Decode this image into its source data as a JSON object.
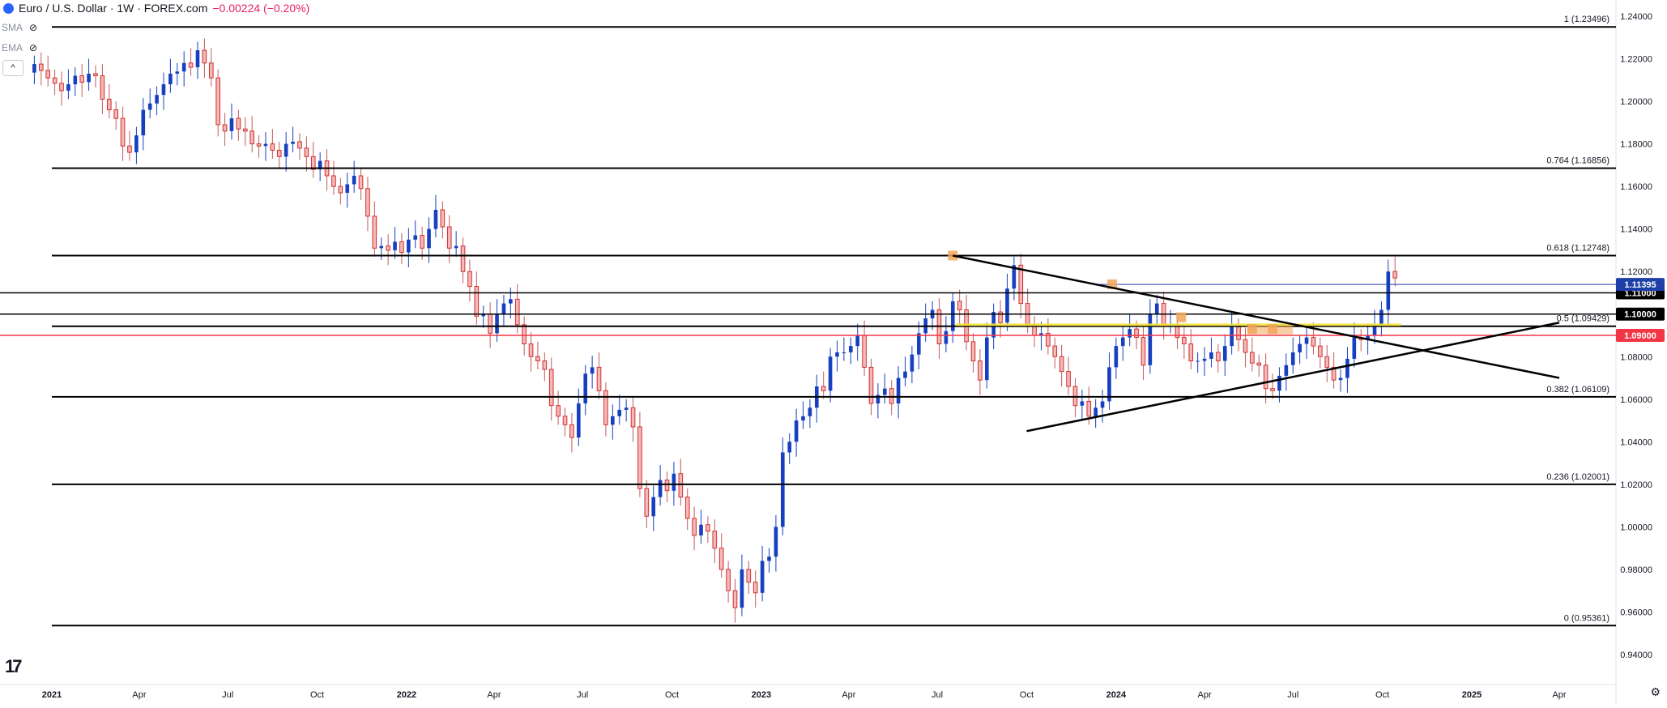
{
  "header": {
    "symbol": "Euro / U.S. Dollar · 1W · FOREX.com",
    "change": "−0.00224 (−0.20%)"
  },
  "indicators": [
    {
      "label": "SMA",
      "icon": "eye-hidden-icon"
    },
    {
      "label": "EMA",
      "icon": "eye-hidden-icon"
    }
  ],
  "collapse_glyph": "^",
  "tv_logo": "17",
  "settings_icon": "⚙",
  "chart_data": {
    "type": "candlestick",
    "y_axis": {
      "range": [
        0.94,
        1.245
      ],
      "ticks": [
        "0.94000",
        "0.96000",
        "0.98000",
        "1.00000",
        "1.02000",
        "1.04000",
        "1.06000",
        "1.08000",
        "1.10000",
        "1.12000",
        "1.14000",
        "1.16000",
        "1.18000",
        "1.20000",
        "1.22000",
        "1.24000"
      ]
    },
    "x_axis": {
      "labels": [
        {
          "text": "2021",
          "date": "2021-01-01",
          "bold": true
        },
        {
          "text": "Apr",
          "date": "2021-04-01"
        },
        {
          "text": "Jul",
          "date": "2021-07-01"
        },
        {
          "text": "Oct",
          "date": "2021-10-01"
        },
        {
          "text": "2022",
          "date": "2022-01-01",
          "bold": true
        },
        {
          "text": "Apr",
          "date": "2022-04-01"
        },
        {
          "text": "Jul",
          "date": "2022-07-01"
        },
        {
          "text": "Oct",
          "date": "2022-10-01"
        },
        {
          "text": "2023",
          "date": "2023-01-01",
          "bold": true
        },
        {
          "text": "Apr",
          "date": "2023-04-01"
        },
        {
          "text": "Jul",
          "date": "2023-07-01"
        },
        {
          "text": "Oct",
          "date": "2023-10-01"
        },
        {
          "text": "2024",
          "date": "2024-01-01",
          "bold": true
        },
        {
          "text": "Apr",
          "date": "2024-04-01"
        },
        {
          "text": "Jul",
          "date": "2024-07-01"
        },
        {
          "text": "Oct",
          "date": "2024-10-01"
        },
        {
          "text": "2025",
          "date": "2025-01-01",
          "bold": true
        },
        {
          "text": "Apr",
          "date": "2025-04-01"
        }
      ]
    },
    "colors": {
      "up": "#1640c0",
      "down": "#d32f2f",
      "hline": "#000000",
      "level_red": "#f23645",
      "level_blue": "#1e3fa8",
      "yellow": "#f3e23b",
      "orange": "#f2a55a"
    },
    "series_close": [
      1.2175,
      1.2145,
      1.211,
      1.2085,
      1.205,
      1.208,
      1.212,
      1.209,
      1.213,
      1.212,
      1.201,
      1.196,
      1.192,
      1.179,
      1.176,
      1.184,
      1.196,
      1.199,
      1.203,
      1.208,
      1.213,
      1.214,
      1.218,
      1.216,
      1.224,
      1.218,
      1.211,
      1.189,
      1.186,
      1.192,
      1.187,
      1.186,
      1.18,
      1.179,
      1.18,
      1.177,
      1.174,
      1.18,
      1.181,
      1.178,
      1.174,
      1.168,
      1.172,
      1.165,
      1.16,
      1.157,
      1.161,
      1.165,
      1.159,
      1.146,
      1.131,
      1.132,
      1.13,
      1.134,
      1.129,
      1.135,
      1.137,
      1.131,
      1.14,
      1.149,
      1.141,
      1.131,
      1.132,
      1.12,
      1.113,
      1.099,
      1.1,
      1.091,
      1.1,
      1.105,
      1.107,
      1.095,
      1.086,
      1.08,
      1.078,
      1.074,
      1.057,
      1.052,
      1.048,
      1.042,
      1.058,
      1.072,
      1.075,
      1.064,
      1.048,
      1.052,
      1.055,
      1.056,
      1.047,
      1.018,
      1.005,
      1.014,
      1.022,
      1.017,
      1.025,
      1.014,
      1.004,
      0.996,
      1.001,
      0.998,
      0.99,
      0.98,
      0.97,
      0.962,
      0.98,
      0.974,
      0.969,
      0.984,
      0.986,
      1.0,
      1.035,
      1.04,
      1.05,
      1.052,
      1.056,
      1.066,
      1.064,
      1.08,
      1.082,
      1.082,
      1.085,
      1.09,
      1.075,
      1.058,
      1.062,
      1.065,
      1.058,
      1.07,
      1.073,
      1.081,
      1.091,
      1.098,
      1.102,
      1.086,
      1.092,
      1.106,
      1.102,
      1.087,
      1.078,
      1.069,
      1.089,
      1.101,
      1.096,
      1.112,
      1.123,
      1.105,
      1.095,
      1.09,
      1.091,
      1.085,
      1.08,
      1.073,
      1.066,
      1.057,
      1.059,
      1.052,
      1.056,
      1.059,
      1.075,
      1.085,
      1.089,
      1.093,
      1.089,
      1.076,
      1.1,
      1.105,
      1.095,
      1.095,
      1.089,
      1.086,
      1.078,
      1.078,
      1.079,
      1.082,
      1.078,
      1.085,
      1.094,
      1.088,
      1.082,
      1.077,
      1.076,
      1.065,
      1.064,
      1.071,
      1.076,
      1.082,
      1.086,
      1.089,
      1.085,
      1.08,
      1.075,
      1.069,
      1.07,
      1.079,
      1.089,
      1.088,
      1.09,
      1.095,
      1.102,
      1.12,
      1.117
    ]
  },
  "levels": [
    {
      "label": "1 (1.23496)",
      "value": 1.23496
    },
    {
      "label": "0.764 (1.16856)",
      "value": 1.16856
    },
    {
      "label": "0.618 (1.12748)",
      "value": 1.12748
    },
    {
      "label": "1.11000",
      "value": 1.11,
      "badge": true,
      "badge_color": "#000000"
    },
    {
      "label": "1.10000",
      "value": 1.1,
      "badge": true,
      "badge_color": "#000000"
    },
    {
      "label": "0.5 (1.09429)",
      "value": 1.09429
    },
    {
      "label": "1.09000",
      "value": 1.09,
      "badge": true,
      "badge_color": "#f23645",
      "line_color": "#f23645"
    },
    {
      "label": "0.382 (1.06109)",
      "value": 1.06109
    },
    {
      "label": "0.236 (1.02001)",
      "value": 1.02001
    },
    {
      "label": "0 (0.95361)",
      "value": 0.95361
    }
  ],
  "last_price": {
    "label": "1.11395",
    "value": 1.11395,
    "color": "#1e3fa8"
  }
}
